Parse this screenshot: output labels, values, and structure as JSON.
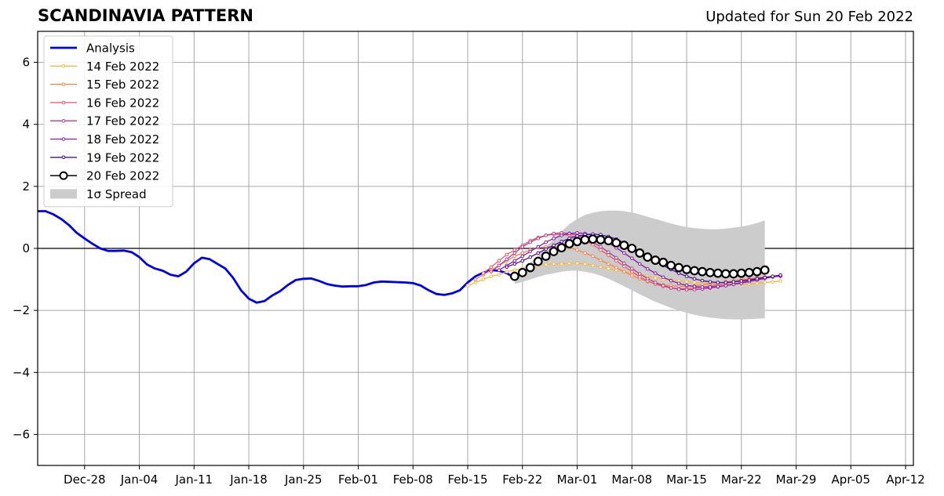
{
  "chart_data": {
    "type": "line",
    "title": "SCANDINAVIA PATTERN",
    "subtitle": "Updated for Sun 20 Feb 2022",
    "xlabel": "",
    "ylabel": "",
    "x_origin": "2021-12-22",
    "xlim": [
      0,
      112
    ],
    "ylim": [
      -7,
      7
    ],
    "grid": true,
    "legend_position": "top-left",
    "x_ticks": [
      {
        "day": 6,
        "label": "Dec-28"
      },
      {
        "day": 13,
        "label": "Jan-04"
      },
      {
        "day": 20,
        "label": "Jan-11"
      },
      {
        "day": 27,
        "label": "Jan-18"
      },
      {
        "day": 34,
        "label": "Jan-25"
      },
      {
        "day": 41,
        "label": "Feb-01"
      },
      {
        "day": 48,
        "label": "Feb-08"
      },
      {
        "day": 55,
        "label": "Feb-15"
      },
      {
        "day": 62,
        "label": "Feb-22"
      },
      {
        "day": 69,
        "label": "Mar-01"
      },
      {
        "day": 76,
        "label": "Mar-08"
      },
      {
        "day": 83,
        "label": "Mar-15"
      },
      {
        "day": 90,
        "label": "Mar-22"
      },
      {
        "day": 97,
        "label": "Mar-29"
      },
      {
        "day": 104,
        "label": "Apr-05"
      },
      {
        "day": 111,
        "label": "Apr-12"
      }
    ],
    "y_ticks": [
      {
        "value": 6,
        "label": "6"
      },
      {
        "value": 4,
        "label": "4"
      },
      {
        "value": 2,
        "label": "2"
      },
      {
        "value": 0,
        "label": "0"
      },
      {
        "value": -2,
        "label": "−2"
      },
      {
        "value": -4,
        "label": "−4"
      },
      {
        "value": -6,
        "label": "−6"
      }
    ],
    "analysis": {
      "name": "Analysis",
      "color": "#0000ee",
      "points": [
        [
          0,
          1.2
        ],
        [
          1,
          1.2
        ],
        [
          2,
          1.1
        ],
        [
          3,
          0.95
        ],
        [
          4,
          0.75
        ],
        [
          5,
          0.5
        ],
        [
          6,
          0.32
        ],
        [
          7,
          0.15
        ],
        [
          8,
          0.0
        ],
        [
          9,
          -0.08
        ],
        [
          10,
          -0.08
        ],
        [
          11,
          -0.07
        ],
        [
          12,
          -0.12
        ],
        [
          13,
          -0.28
        ],
        [
          14,
          -0.52
        ],
        [
          15,
          -0.65
        ],
        [
          16,
          -0.72
        ],
        [
          17,
          -0.85
        ],
        [
          18,
          -0.9
        ],
        [
          19,
          -0.75
        ],
        [
          20,
          -0.48
        ],
        [
          21,
          -0.3
        ],
        [
          22,
          -0.35
        ],
        [
          23,
          -0.5
        ],
        [
          24,
          -0.65
        ],
        [
          25,
          -0.95
        ],
        [
          26,
          -1.35
        ],
        [
          27,
          -1.62
        ],
        [
          28,
          -1.75
        ],
        [
          29,
          -1.7
        ],
        [
          30,
          -1.52
        ],
        [
          31,
          -1.38
        ],
        [
          32,
          -1.18
        ],
        [
          33,
          -1.02
        ],
        [
          34,
          -0.98
        ],
        [
          35,
          -0.97
        ],
        [
          36,
          -1.05
        ],
        [
          37,
          -1.15
        ],
        [
          38,
          -1.2
        ],
        [
          39,
          -1.23
        ],
        [
          40,
          -1.22
        ],
        [
          41,
          -1.22
        ],
        [
          42,
          -1.18
        ],
        [
          43,
          -1.1
        ],
        [
          44,
          -1.07
        ],
        [
          45,
          -1.08
        ],
        [
          46,
          -1.09
        ],
        [
          47,
          -1.1
        ],
        [
          48,
          -1.12
        ],
        [
          49,
          -1.2
        ],
        [
          50,
          -1.35
        ],
        [
          51,
          -1.47
        ],
        [
          52,
          -1.5
        ],
        [
          53,
          -1.45
        ],
        [
          54,
          -1.35
        ],
        [
          55,
          -1.1
        ],
        [
          56,
          -0.9
        ],
        [
          57,
          -0.78
        ],
        [
          58,
          -0.7
        ],
        [
          59,
          -0.72
        ],
        [
          60,
          -0.8
        ],
        [
          61,
          -0.95
        ]
      ]
    },
    "forecasts": [
      {
        "name": "14 Feb 2022",
        "color": "#f8b73a",
        "start_day": 55,
        "values": [
          -1.2,
          -1.1,
          -1.0,
          -0.9,
          -0.85,
          -0.75,
          -0.7,
          -0.65,
          -0.58,
          -0.55,
          -0.52,
          -0.5,
          -0.5,
          -0.48,
          -0.48,
          -0.5,
          -0.55,
          -0.6,
          -0.65,
          -0.7,
          -0.75,
          -0.8,
          -0.85,
          -0.9,
          -0.95,
          -1.0,
          -1.02,
          -1.05,
          -1.08,
          -1.1,
          -1.12,
          -1.13,
          -1.15,
          -1.15,
          -1.15,
          -1.15,
          -1.15,
          -1.13,
          -1.1,
          -1.08,
          -1.05
        ]
      },
      {
        "name": "15 Feb 2022",
        "color": "#f4844e",
        "start_day": 56,
        "values": [
          -1.0,
          -0.85,
          -0.7,
          -0.55,
          -0.4,
          -0.25,
          -0.15,
          -0.05,
          0.02,
          0.05,
          0.05,
          0.05,
          0.02,
          -0.05,
          -0.15,
          -0.25,
          -0.38,
          -0.5,
          -0.62,
          -0.75,
          -0.88,
          -0.98,
          -1.07,
          -1.13,
          -1.18,
          -1.2,
          -1.22,
          -1.22,
          -1.2,
          -1.18,
          -1.15,
          -1.12,
          -1.08,
          -1.05,
          -1.0,
          -0.98,
          -0.95,
          -0.92,
          -0.9,
          -0.88
        ]
      },
      {
        "name": "16 Feb 2022",
        "color": "#e35c6c",
        "start_day": 57,
        "values": [
          -0.8,
          -0.6,
          -0.4,
          -0.2,
          -0.05,
          0.1,
          0.25,
          0.35,
          0.42,
          0.45,
          0.45,
          0.42,
          0.35,
          0.25,
          0.12,
          -0.05,
          -0.22,
          -0.4,
          -0.58,
          -0.75,
          -0.92,
          -1.05,
          -1.15,
          -1.22,
          -1.28,
          -1.3,
          -1.3,
          -1.28,
          -1.25,
          -1.22,
          -1.18,
          -1.13,
          -1.08,
          -1.04,
          -1.0,
          -0.96,
          -0.93,
          -0.9,
          -0.88
        ]
      },
      {
        "name": "17 Feb 2022",
        "color": "#be3a8e",
        "start_day": 58,
        "values": [
          -0.75,
          -0.55,
          -0.35,
          -0.15,
          0.05,
          0.2,
          0.32,
          0.42,
          0.48,
          0.5,
          0.48,
          0.42,
          0.32,
          0.2,
          0.05,
          -0.12,
          -0.3,
          -0.48,
          -0.65,
          -0.82,
          -0.97,
          -1.1,
          -1.2,
          -1.27,
          -1.32,
          -1.33,
          -1.33,
          -1.31,
          -1.28,
          -1.24,
          -1.2,
          -1.15,
          -1.1,
          -1.05,
          -1.0,
          -0.96,
          -0.92,
          -0.9
        ]
      },
      {
        "name": "18 Feb 2022",
        "color": "#8a1ab0",
        "start_day": 59,
        "values": [
          -0.7,
          -0.55,
          -0.4,
          -0.25,
          -0.1,
          0.05,
          0.2,
          0.32,
          0.42,
          0.48,
          0.5,
          0.48,
          0.42,
          0.32,
          0.18,
          0.02,
          -0.15,
          -0.32,
          -0.5,
          -0.66,
          -0.8,
          -0.93,
          -1.04,
          -1.13,
          -1.19,
          -1.23,
          -1.25,
          -1.25,
          -1.23,
          -1.2,
          -1.16,
          -1.12,
          -1.07,
          -1.02,
          -0.97,
          -0.92,
          -0.88
        ]
      },
      {
        "name": "19 Feb 2022",
        "color": "#4b0d9e",
        "start_day": 60,
        "values": [
          -0.6,
          -0.5,
          -0.4,
          -0.28,
          -0.15,
          -0.02,
          0.1,
          0.22,
          0.32,
          0.4,
          0.44,
          0.46,
          0.44,
          0.38,
          0.3,
          0.18,
          0.04,
          -0.1,
          -0.25,
          -0.4,
          -0.55,
          -0.68,
          -0.8,
          -0.9,
          -0.98,
          -1.04,
          -1.08,
          -1.1,
          -1.1,
          -1.08,
          -1.05,
          -1.02,
          -0.98,
          -0.94,
          -0.9,
          -0.86
        ]
      },
      {
        "name": "20 Feb 2022",
        "color": "#000000",
        "start_day": 61,
        "values": [
          -0.9,
          -0.78,
          -0.62,
          -0.42,
          -0.25,
          -0.1,
          0.02,
          0.15,
          0.22,
          0.28,
          0.3,
          0.28,
          0.25,
          0.18,
          0.1,
          0.0,
          -0.15,
          -0.28,
          -0.38,
          -0.45,
          -0.55,
          -0.62,
          -0.68,
          -0.72,
          -0.75,
          -0.78,
          -0.8,
          -0.82,
          -0.82,
          -0.8,
          -0.78,
          -0.75,
          -0.7
        ]
      }
    ],
    "spread": {
      "name": "1σ Spread",
      "color": "#cccccc",
      "x": [
        61,
        62,
        63,
        64,
        65,
        66,
        67,
        68,
        69,
        70,
        71,
        72,
        73,
        74,
        75,
        76,
        77,
        78,
        79,
        80,
        81,
        82,
        83,
        84,
        85,
        86,
        87,
        88,
        89,
        90,
        91,
        92,
        93
      ],
      "upper": [
        -0.95,
        -0.72,
        -0.48,
        -0.22,
        0.05,
        0.3,
        0.55,
        0.78,
        0.95,
        1.08,
        1.15,
        1.2,
        1.22,
        1.22,
        1.2,
        1.16,
        1.1,
        1.02,
        0.95,
        0.88,
        0.8,
        0.74,
        0.69,
        0.65,
        0.63,
        0.62,
        0.62,
        0.64,
        0.67,
        0.7,
        0.75,
        0.82,
        0.9
      ],
      "lower": [
        -1.15,
        -1.08,
        -1.0,
        -0.92,
        -0.85,
        -0.8,
        -0.75,
        -0.72,
        -0.72,
        -0.75,
        -0.8,
        -0.88,
        -0.98,
        -1.1,
        -1.22,
        -1.35,
        -1.48,
        -1.6,
        -1.72,
        -1.82,
        -1.92,
        -2.0,
        -2.08,
        -2.14,
        -2.19,
        -2.23,
        -2.26,
        -2.28,
        -2.29,
        -2.29,
        -2.28,
        -2.27,
        -2.25
      ]
    }
  }
}
